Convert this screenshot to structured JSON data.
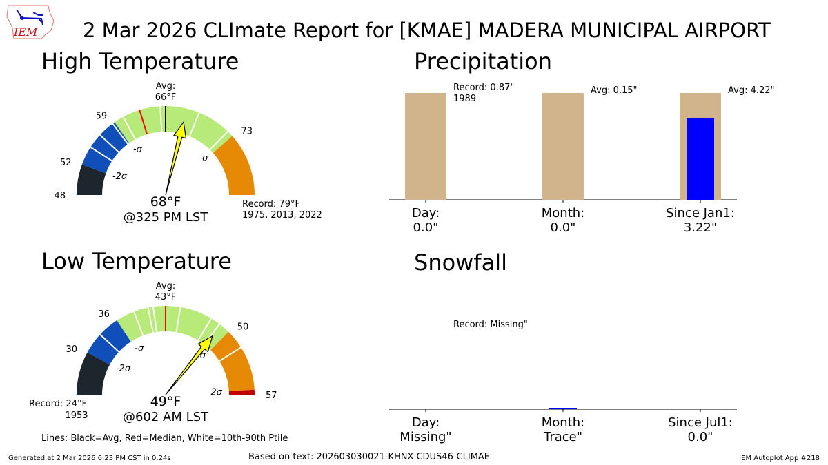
{
  "title": "2 Mar 2026 CLImate Report for [KMAE] MADERA MUNICIPAL AIRPORT",
  "logo_text": "IEM",
  "footer": {
    "generated": "Generated at 2 Mar 2026 6:23 PM CST in 0.24s",
    "based_on": "Based on text: 202603030021-KHNX-CDUS46-CLIMAE",
    "app": "IEM Autoplot App #218",
    "legend": "Lines: Black=Avg, Red=Median, White=10th-90th Ptile"
  },
  "colors": {
    "black": "#1c262c",
    "blue": "#104eb9",
    "green": "#b8ea7a",
    "orange": "#e68904",
    "red": "#c00000",
    "tan": "#d2b48c",
    "obs": "#0000ff",
    "needle": "#ffff00"
  },
  "chart_data": [
    {
      "type": "gauge",
      "title": "High Temperature",
      "min": 48,
      "avg": 66,
      "max": 79,
      "observed": 68,
      "avg_label": "Avg:\n66°F",
      "avg_label_1": "Avg:",
      "avg_label_2": "66°F",
      "value_label": "68°F",
      "time_label": "@325 PM LST",
      "record_label_1": "Record: 79°F",
      "record_label_2": "1975, 2013, 2022",
      "bands": [
        {
          "from": 48,
          "to": 52,
          "color": "black"
        },
        {
          "from": 52,
          "to": 59,
          "color": "blue"
        },
        {
          "from": 59,
          "to": 73,
          "color": "green"
        },
        {
          "from": 73,
          "to": 79,
          "color": "orange"
        }
      ],
      "ticks": [
        {
          "v": 48,
          "label": "48"
        },
        {
          "v": 52,
          "label": "52"
        },
        {
          "v": 59,
          "label": "59"
        },
        {
          "v": 73,
          "label": "73"
        }
      ],
      "sigma_labels": [
        {
          "v": 52,
          "label": "-2σ"
        },
        {
          "v": 59,
          "label": "-σ"
        },
        {
          "v": 73,
          "label": "σ"
        }
      ],
      "percentile_lines": [
        54.5,
        56.5,
        58.7,
        60.3,
        65.3,
        69.2,
        72.4
      ],
      "median": 62.6
    },
    {
      "type": "gauge",
      "title": "Low Temperature",
      "min": 24,
      "avg": 43,
      "max": 57,
      "observed": 49,
      "avg_label_1": "Avg:",
      "avg_label_2": "43°F",
      "value_label": "49°F",
      "time_label": "@602 AM LST",
      "record_label_1": "Record: 24°F",
      "record_label_2": "1953",
      "bands": [
        {
          "from": 24,
          "to": 30,
          "color": "black"
        },
        {
          "from": 30,
          "to": 36,
          "color": "blue"
        },
        {
          "from": 36,
          "to": 50,
          "color": "green"
        },
        {
          "from": 50,
          "to": 56.5,
          "color": "orange"
        },
        {
          "from": 56.5,
          "to": 57,
          "color": "red"
        }
      ],
      "ticks": [
        {
          "v": 24,
          "label": ""
        },
        {
          "v": 30,
          "label": "30"
        },
        {
          "v": 36,
          "label": "36"
        },
        {
          "v": 50,
          "label": "50"
        },
        {
          "v": 57,
          "label": "57"
        }
      ],
      "sigma_labels": [
        {
          "v": 30,
          "label": "-2σ"
        },
        {
          "v": 36,
          "label": "-σ"
        },
        {
          "v": 50,
          "label": "σ"
        },
        {
          "v": 56.5,
          "label": "2σ"
        }
      ],
      "percentile_lines": [
        33,
        38.6,
        40.6,
        41.3,
        44.5,
        47.8,
        48.8,
        52
      ],
      "median": 43
    },
    {
      "type": "bar",
      "title": "Precipitation",
      "categories": [
        "Day:",
        "Month:",
        "Since Jan1:"
      ],
      "observed_labels": [
        "0.0\"",
        "0.0\"",
        "3.22\""
      ],
      "observed": [
        0.0,
        0.0,
        3.22
      ],
      "reference": [
        0.87,
        0.15,
        4.22
      ],
      "annotations": [
        "Record: 0.87\"\n1989",
        "Avg: 0.15\"",
        "Avg: 4.22\""
      ],
      "annotation_lines": [
        [
          "Record: 0.87\"",
          "1989"
        ],
        [
          "Avg: 0.15\""
        ],
        [
          "Avg: 4.22\""
        ]
      ]
    },
    {
      "type": "bar",
      "title": "Snowfall",
      "categories": [
        "Day:",
        "Month:",
        "Since Jul1:"
      ],
      "observed_labels": [
        "Missing\"",
        "Trace\"",
        "0.0\""
      ],
      "observed": [
        null,
        0.0001,
        0.0
      ],
      "reference": [
        null,
        null,
        null
      ],
      "annotation_lines": [
        [
          "Record: Missing\""
        ],
        [],
        []
      ]
    }
  ]
}
